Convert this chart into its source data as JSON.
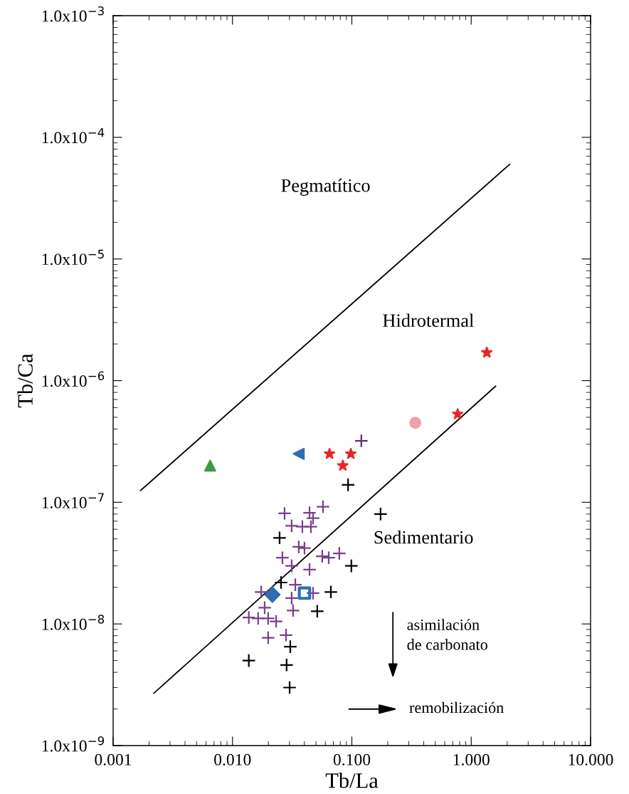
{
  "chart_data": {
    "type": "scatter",
    "xlabel": "Tb/La",
    "ylabel": "Tb/Ca",
    "log": "xy",
    "grid": false,
    "xlim": [
      0.001,
      10
    ],
    "ylim": [
      1e-09,
      0.001
    ],
    "xticks": [
      {
        "value": 0.001,
        "label": "0.001"
      },
      {
        "value": 0.01,
        "label": "0.010"
      },
      {
        "value": 0.1,
        "label": "0.100"
      },
      {
        "value": 1,
        "label": "1.000"
      },
      {
        "value": 10,
        "label": "10.000"
      }
    ],
    "yticks": [
      {
        "value": 1e-09,
        "label": "1.0x10$^{−9}$"
      },
      {
        "value": 1e-08,
        "label": "1.0x10$^{−8}$"
      },
      {
        "value": 1e-07,
        "label": "1.0x10$^{−7}$"
      },
      {
        "value": 1e-06,
        "label": "1.0x10$^{−6}$"
      },
      {
        "value": 1e-05,
        "label": "1.0x10$^{−5}$"
      },
      {
        "value": 0.0001,
        "label": "1.0x10$^{−4}$"
      },
      {
        "value": 0.001,
        "label": "1.0x10$^{−3}$"
      }
    ],
    "series": [
      {
        "type": "line",
        "color": "#000000",
        "marker": "none",
        "x": [
          0.0017,
          2.1
        ],
        "values": [
          1.25e-07,
          6e-05
        ]
      },
      {
        "type": "line",
        "color": "#000000",
        "marker": "none",
        "x": [
          0.0022,
          1.6
        ],
        "values": [
          2.7e-09,
          9e-07
        ]
      },
      {
        "color": "#000000",
        "marker": "cross",
        "x": [
          0.093,
          0.174,
          0.0248,
          0.099,
          0.0667,
          0.0513,
          0.0137,
          0.0284,
          0.0301,
          0.0305,
          0.0255
        ],
        "values": [
          1.39e-07,
          8e-08,
          5.1e-08,
          3e-08,
          1.83e-08,
          1.27e-08,
          5e-09,
          4.6e-09,
          3e-09,
          6.5e-09,
          2.19e-08
        ]
      },
      {
        "color": "#7b3f8c",
        "marker": "cross",
        "x": [
          0.0273,
          0.0573,
          0.0442,
          0.0473,
          0.0313,
          0.0385,
          0.0454,
          0.0359,
          0.0401,
          0.0262,
          0.0565,
          0.0785,
          0.064,
          0.0313,
          0.0442,
          0.0336,
          0.0174,
          0.0313,
          0.0473,
          0.0322,
          0.0186,
          0.0137,
          0.0164,
          0.0199,
          0.0232,
          0.0199,
          0.0281
        ],
        "values": [
          8.1e-08,
          9.2e-08,
          8.2e-08,
          7.4e-08,
          6.4e-08,
          6.3e-08,
          6.3e-08,
          4.3e-08,
          4.2e-08,
          3.5e-08,
          3.6e-08,
          3.8e-08,
          3.5e-08,
          3e-08,
          2.8e-08,
          2.1e-08,
          1.83e-08,
          1.63e-08,
          1.79e-08,
          1.29e-08,
          1.36e-08,
          1.13e-08,
          1.11e-08,
          1.11e-08,
          1.05e-08,
          7.7e-09,
          8.1e-09
        ]
      },
      {
        "color": "#2e6db4",
        "marker": "diamond",
        "x": [
          0.0216
        ],
        "values": [
          1.74e-08
        ]
      },
      {
        "color": "#2e6db4",
        "marker": "square",
        "x": [
          0.0401
        ],
        "values": [
          1.79e-08
        ]
      },
      {
        "color": "#3a9a4a",
        "marker": "triangle",
        "x": [
          0.0065
        ],
        "values": [
          2e-07
        ]
      },
      {
        "color": "#2e6db4",
        "marker": "triangle_left",
        "x": [
          0.0359
        ],
        "values": [
          2.5e-07
        ]
      },
      {
        "color": "#e8262a",
        "marker": "star",
        "x": [
          0.065,
          0.098,
          0.084,
          0.77,
          1.35
        ],
        "values": [
          2.5e-07,
          2.5e-07,
          2e-07,
          5.3e-07,
          1.7e-06
        ]
      },
      {
        "color": "#5b2a7a",
        "marker": "cross",
        "x": [
          0.12
        ],
        "values": [
          3.2e-07
        ]
      },
      {
        "color": "#f0a0a8",
        "marker": "circle",
        "x": [
          0.34
        ],
        "values": [
          4.5e-07
        ]
      }
    ],
    "annotations": [
      "Pegmatítico",
      "Hidrotermal",
      "Sedimentario",
      "asimilación\nde carbonato",
      "remobilización"
    ]
  }
}
